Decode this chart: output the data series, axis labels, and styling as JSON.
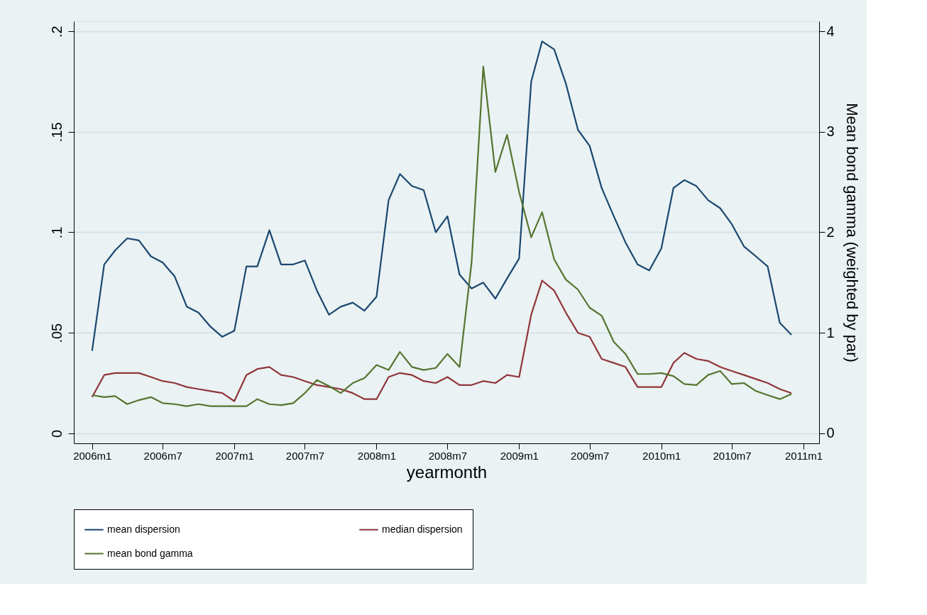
{
  "chart_data": {
    "type": "line",
    "xlabel": "yearmonth",
    "y2label": "Mean bond gamma (weighted by par)",
    "x": [
      "2006-01",
      "2006-02",
      "2006-03",
      "2006-04",
      "2006-05",
      "2006-06",
      "2006-07",
      "2006-08",
      "2006-09",
      "2006-10",
      "2006-11",
      "2006-12",
      "2007-01",
      "2007-02",
      "2007-03",
      "2007-04",
      "2007-05",
      "2007-06",
      "2007-07",
      "2007-08",
      "2007-09",
      "2007-10",
      "2007-11",
      "2007-12",
      "2008-01",
      "2008-02",
      "2008-03",
      "2008-04",
      "2008-05",
      "2008-06",
      "2008-07",
      "2008-08",
      "2008-09",
      "2008-10",
      "2008-11",
      "2008-12",
      "2009-01",
      "2009-02",
      "2009-03",
      "2009-04",
      "2009-05",
      "2009-06",
      "2009-07",
      "2009-08",
      "2009-09",
      "2009-10",
      "2009-11",
      "2009-12",
      "2010-01",
      "2010-02",
      "2010-03",
      "2010-04",
      "2010-05",
      "2010-06",
      "2010-07",
      "2010-08",
      "2010-09",
      "2010-10",
      "2010-11",
      "2010-12"
    ],
    "series": [
      {
        "name": "mean dispersion",
        "color": "#1a476f",
        "values": [
          0.041,
          0.084,
          0.091,
          0.097,
          0.096,
          0.088,
          0.085,
          0.078,
          0.063,
          0.06,
          0.053,
          0.048,
          0.051,
          0.083,
          0.083,
          0.101,
          0.084,
          0.084,
          0.086,
          0.071,
          0.059,
          0.063,
          0.065,
          0.061,
          0.068,
          0.116,
          0.129,
          0.123,
          0.121,
          0.1,
          0.108,
          0.079,
          0.072,
          0.075,
          0.067,
          0.077,
          0.087,
          0.175,
          0.195,
          0.191,
          0.174,
          0.151,
          0.143,
          0.122,
          0.108,
          0.095,
          0.084,
          0.081,
          0.092,
          0.122,
          0.126,
          0.123,
          0.116,
          0.112,
          0.104,
          0.093,
          0.088,
          0.083,
          0.055,
          0.049
        ]
      },
      {
        "name": "median dispersion",
        "color": "#90353b",
        "values": [
          0.018,
          0.029,
          0.03,
          0.03,
          0.03,
          0.028,
          0.026,
          0.025,
          0.023,
          0.022,
          0.021,
          0.02,
          0.016,
          0.029,
          0.032,
          0.033,
          0.029,
          0.028,
          0.026,
          0.024,
          0.023,
          0.022,
          0.02,
          0.017,
          0.017,
          0.028,
          0.03,
          0.029,
          0.026,
          0.025,
          0.028,
          0.024,
          0.024,
          0.026,
          0.025,
          0.029,
          0.028,
          0.059,
          0.076,
          0.071,
          0.06,
          0.05,
          0.048,
          0.037,
          0.035,
          0.033,
          0.023,
          0.023,
          0.023,
          0.035,
          0.04,
          0.037,
          0.036,
          0.033,
          0.031,
          0.029,
          0.027,
          0.025,
          0.022,
          0.02
        ]
      },
      {
        "name": "mean bond gamma",
        "color": "#55752f",
        "axis": "y2",
        "values": [
          0.38,
          0.36,
          0.37,
          0.29,
          0.33,
          0.36,
          0.3,
          0.29,
          0.27,
          0.29,
          0.27,
          0.27,
          0.27,
          0.27,
          0.34,
          0.29,
          0.28,
          0.3,
          0.4,
          0.53,
          0.47,
          0.4,
          0.5,
          0.55,
          0.68,
          0.63,
          0.81,
          0.66,
          0.63,
          0.65,
          0.79,
          0.66,
          1.7,
          3.65,
          2.6,
          2.97,
          2.4,
          1.95,
          2.2,
          1.73,
          1.53,
          1.43,
          1.25,
          1.17,
          0.91,
          0.79,
          0.59,
          0.59,
          0.6,
          0.57,
          0.49,
          0.48,
          0.58,
          0.62,
          0.49,
          0.5,
          0.42,
          0.38,
          0.34,
          0.39
        ]
      }
    ],
    "xlim": [
      "2005-11-15",
      "2011-02-10"
    ],
    "xticks": [
      {
        "value": "2006-01",
        "label": "2006m1"
      },
      {
        "value": "2006-07",
        "label": "2006m7"
      },
      {
        "value": "2007-01",
        "label": "2007m1"
      },
      {
        "value": "2007-07",
        "label": "2007m7"
      },
      {
        "value": "2008-01",
        "label": "2008m1"
      },
      {
        "value": "2008-07",
        "label": "2008m7"
      },
      {
        "value": "2009-01",
        "label": "2009m1"
      },
      {
        "value": "2009-07",
        "label": "2009m7"
      },
      {
        "value": "2010-01",
        "label": "2010m1"
      },
      {
        "value": "2010-07",
        "label": "2010m7"
      },
      {
        "value": "2011-01",
        "label": "2011m1"
      }
    ],
    "ylim": [
      -0.005,
      0.205
    ],
    "yticks": [
      0,
      {
        "value": 0.05,
        "label": ".05"
      },
      {
        "value": 0.1,
        "label": ".1"
      },
      {
        "value": 0.15,
        "label": ".15"
      },
      {
        "value": 0.2,
        "label": ".2"
      }
    ],
    "y2lim": [
      -0.1,
      4.1
    ],
    "y2ticks": [
      0,
      1,
      2,
      3,
      4
    ],
    "grid": "y",
    "legend": "bottom",
    "line_style": "solid",
    "marker": "none"
  }
}
